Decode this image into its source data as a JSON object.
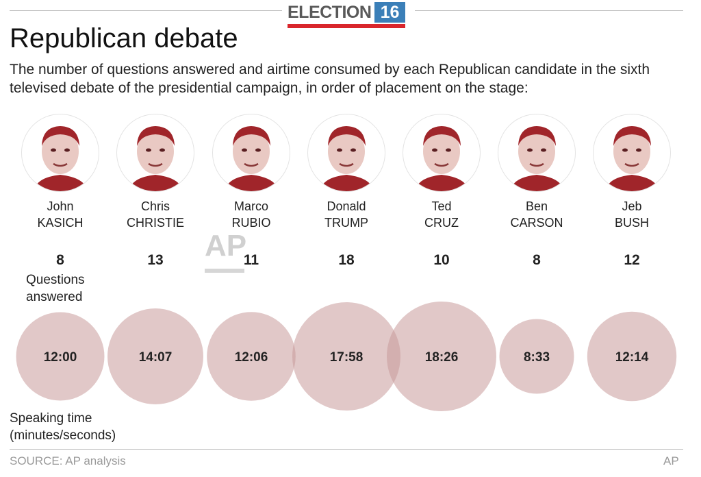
{
  "brand": {
    "word": "ELECTION",
    "number": "16"
  },
  "watermark": "AP",
  "chart_data": {
    "type": "bubble",
    "title": "Republican debate",
    "subtitle": "The number of questions answered and airtime consumed by each Republican candidate in the sixth televised debate of the presidential campaign, in order of placement on the stage:",
    "questions_label": [
      "Questions",
      "answered"
    ],
    "speaking_label": [
      "Speaking time",
      "(minutes/seconds)"
    ],
    "candidates": [
      {
        "first": "John",
        "last": "KASICH",
        "questions": 8,
        "time": "12:00",
        "seconds": 720
      },
      {
        "first": "Chris",
        "last": "CHRISTIE",
        "questions": 13,
        "time": "14:07",
        "seconds": 847
      },
      {
        "first": "Marco",
        "last": "RUBIO",
        "questions": 11,
        "time": "12:06",
        "seconds": 726
      },
      {
        "first": "Donald",
        "last": "TRUMP",
        "questions": 18,
        "time": "17:58",
        "seconds": 1078
      },
      {
        "first": "Ted",
        "last": "CRUZ",
        "questions": 10,
        "time": "18:26",
        "seconds": 1106
      },
      {
        "first": "Ben",
        "last": "CARSON",
        "questions": 8,
        "time": "8:33",
        "seconds": 513
      },
      {
        "first": "Jeb",
        "last": "BUSH",
        "questions": 12,
        "time": "12:14",
        "seconds": 734
      }
    ],
    "bubble_color": "#c99a9a",
    "bubble_opacity": 0.55,
    "portrait_color": "#a0252a"
  },
  "footer": {
    "source": "SOURCE: AP analysis",
    "credit": "AP"
  }
}
